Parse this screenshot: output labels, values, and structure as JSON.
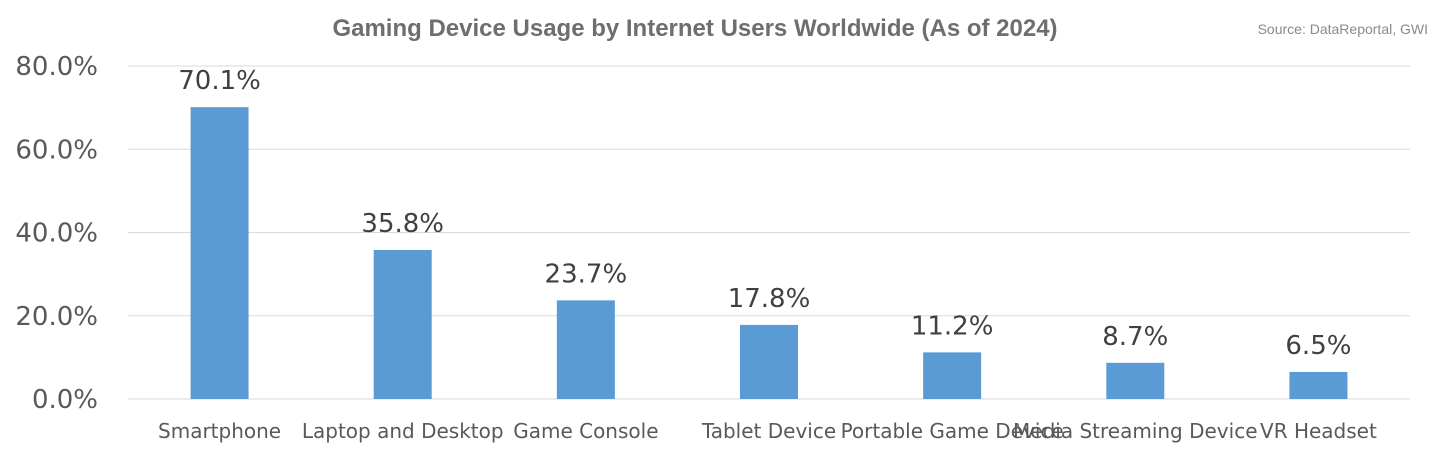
{
  "chart_data": {
    "type": "bar",
    "title": "Gaming Device Usage by Internet Users Worldwide (As of 2024)",
    "source": "Source: DataReportal, GWI",
    "xlabel": "",
    "ylabel": "",
    "categories": [
      "Smartphone",
      "Laptop and Desktop",
      "Game Console",
      "Tablet Device",
      "Portable Game Device",
      "Media Streaming Device",
      "VR Headset"
    ],
    "values": [
      70.1,
      35.8,
      23.7,
      17.8,
      11.2,
      8.7,
      6.5
    ],
    "data_labels": [
      "70.1%",
      "35.8%",
      "23.7%",
      "17.8%",
      "11.2%",
      "8.7%",
      "6.5%"
    ],
    "ylim": [
      0,
      80
    ],
    "yticks": [
      0,
      20,
      40,
      60,
      80
    ],
    "ytick_labels": [
      "0.0%",
      "20.0%",
      "40.0%",
      "60.0%",
      "80.0%"
    ],
    "grid": true,
    "legend": "none",
    "colors": {
      "bar": "#5b9bd5"
    }
  }
}
